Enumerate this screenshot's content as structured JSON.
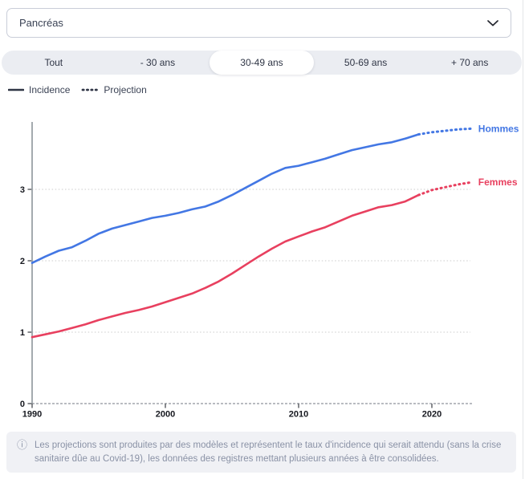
{
  "dropdown": {
    "value": "Pancréas"
  },
  "tabs": {
    "items": [
      {
        "label": "Tout",
        "selected": false
      },
      {
        "label": "- 30 ans",
        "selected": false
      },
      {
        "label": "30-49 ans",
        "selected": true
      },
      {
        "label": "50-69 ans",
        "selected": false
      },
      {
        "label": "+ 70 ans",
        "selected": false
      }
    ]
  },
  "legend": {
    "incidence_label": "Incidence",
    "projection_label": "Projection"
  },
  "footer": {
    "info_icon": "ⓘ",
    "text": "Les projections sont produites par des modèles et représentent le taux d'incidence qui serait attendu (sans la crise sanitaire dûe au Covid-19), les données des registres mettant plusieurs années à être consolidées."
  },
  "colors": {
    "hommes": "#4377e4",
    "femmes": "#e8405f",
    "axis": "#9aa0a6",
    "grid": "#cbcbcb",
    "axis_label": "#16181f",
    "legend_line": "#2f3545"
  },
  "chart_data": {
    "type": "line",
    "title": "",
    "xlabel": "",
    "ylabel": "",
    "x_range": [
      1990,
      2023
    ],
    "y_range": [
      0,
      3.95
    ],
    "x_ticks": [
      1990,
      2000,
      2010,
      2020
    ],
    "y_ticks": [
      0,
      1,
      2,
      3
    ],
    "grid": "dotted-horizontal",
    "legend_position": "line-end-labels",
    "series": [
      {
        "name": "Hommes",
        "color": "#4377e4",
        "style_solid": "incidence",
        "solid": [
          [
            1990,
            1.97
          ],
          [
            1991,
            2.06
          ],
          [
            1992,
            2.14
          ],
          [
            1993,
            2.19
          ],
          [
            1994,
            2.28
          ],
          [
            1995,
            2.38
          ],
          [
            1996,
            2.45
          ],
          [
            1997,
            2.5
          ],
          [
            1998,
            2.55
          ],
          [
            1999,
            2.6
          ],
          [
            2000,
            2.63
          ],
          [
            2001,
            2.67
          ],
          [
            2002,
            2.72
          ],
          [
            2003,
            2.76
          ],
          [
            2004,
            2.83
          ],
          [
            2005,
            2.92
          ],
          [
            2006,
            3.02
          ],
          [
            2007,
            3.12
          ],
          [
            2008,
            3.22
          ],
          [
            2009,
            3.3
          ],
          [
            2010,
            3.33
          ],
          [
            2011,
            3.38
          ],
          [
            2012,
            3.43
          ],
          [
            2013,
            3.49
          ],
          [
            2014,
            3.55
          ],
          [
            2015,
            3.59
          ],
          [
            2016,
            3.63
          ],
          [
            2017,
            3.66
          ],
          [
            2018,
            3.71
          ],
          [
            2019,
            3.77
          ]
        ],
        "projection": [
          [
            2019,
            3.77
          ],
          [
            2020,
            3.8
          ],
          [
            2021,
            3.82
          ],
          [
            2022,
            3.84
          ],
          [
            2023,
            3.85
          ]
        ]
      },
      {
        "name": "Femmes",
        "color": "#e8405f",
        "style_solid": "incidence",
        "solid": [
          [
            1990,
            0.93
          ],
          [
            1991,
            0.97
          ],
          [
            1992,
            1.01
          ],
          [
            1993,
            1.06
          ],
          [
            1994,
            1.11
          ],
          [
            1995,
            1.17
          ],
          [
            1996,
            1.22
          ],
          [
            1997,
            1.27
          ],
          [
            1998,
            1.31
          ],
          [
            1999,
            1.36
          ],
          [
            2000,
            1.42
          ],
          [
            2001,
            1.48
          ],
          [
            2002,
            1.54
          ],
          [
            2003,
            1.62
          ],
          [
            2004,
            1.71
          ],
          [
            2005,
            1.82
          ],
          [
            2006,
            1.94
          ],
          [
            2007,
            2.06
          ],
          [
            2008,
            2.17
          ],
          [
            2009,
            2.27
          ],
          [
            2010,
            2.34
          ],
          [
            2011,
            2.41
          ],
          [
            2012,
            2.47
          ],
          [
            2013,
            2.55
          ],
          [
            2014,
            2.63
          ],
          [
            2015,
            2.69
          ],
          [
            2016,
            2.75
          ],
          [
            2017,
            2.78
          ],
          [
            2018,
            2.83
          ],
          [
            2019,
            2.92
          ]
        ],
        "projection": [
          [
            2019,
            2.92
          ],
          [
            2020,
            2.99
          ],
          [
            2021,
            3.03
          ],
          [
            2022,
            3.07
          ],
          [
            2023,
            3.1
          ]
        ]
      }
    ]
  }
}
